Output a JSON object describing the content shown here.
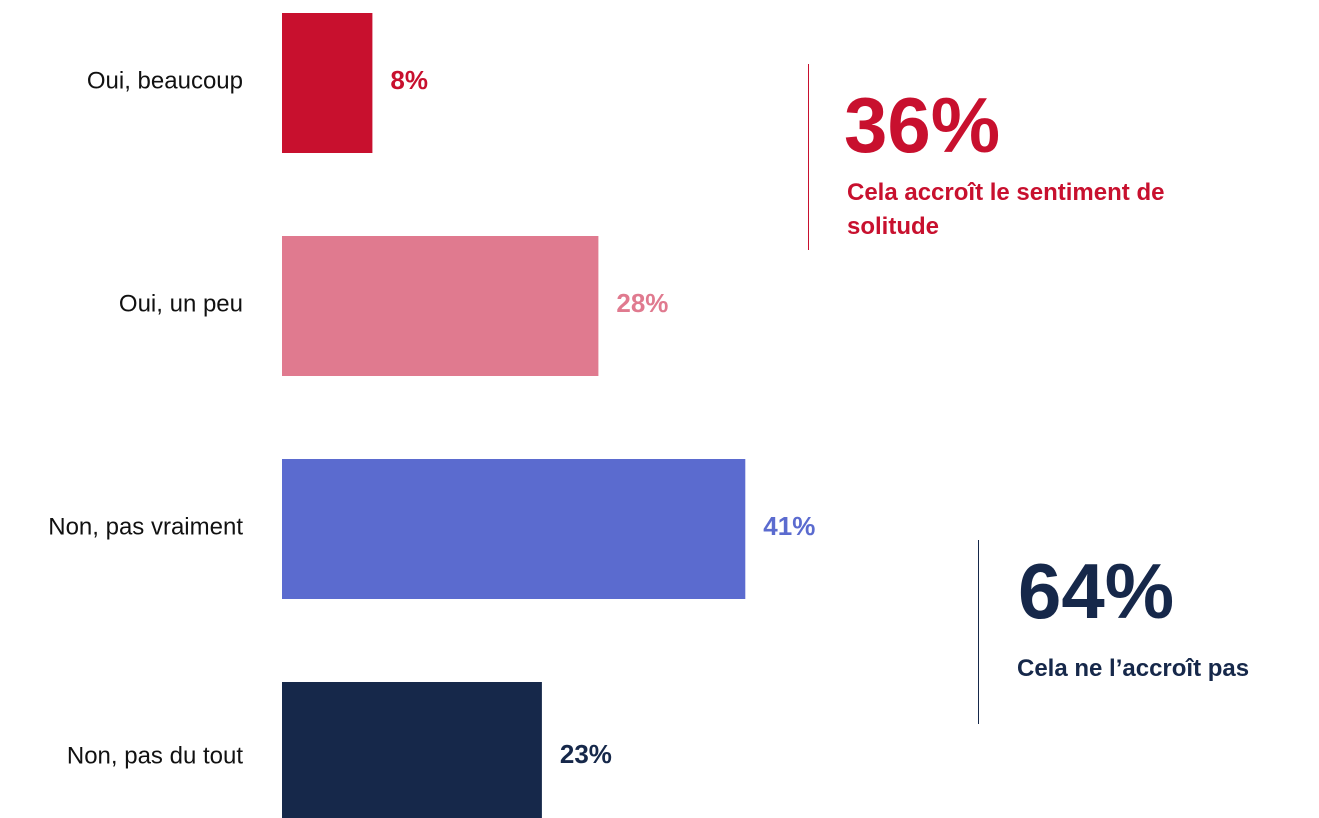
{
  "chart_data": {
    "type": "bar",
    "orientation": "horizontal",
    "categories": [
      "Oui, beaucoup",
      "Oui, un peu",
      "Non, pas vraiment",
      "Non, pas du tout"
    ],
    "values": [
      8,
      28,
      41,
      23
    ],
    "value_labels": [
      "8%",
      "28%",
      "41%",
      "23%"
    ],
    "colors": [
      "#c8102e",
      "#e07a8f",
      "#5b6bcf",
      "#16284a"
    ],
    "xlim": [
      0,
      100
    ],
    "grid": false,
    "legend": "none",
    "title": "",
    "xlabel": "",
    "ylabel": ""
  },
  "summary": {
    "yes": {
      "value": "36%",
      "text": "Cela accroît le sentiment de solitude",
      "color": "#c8102e"
    },
    "no": {
      "value": "64%",
      "text": "Cela ne l’accroît pas",
      "color": "#16284a"
    }
  }
}
